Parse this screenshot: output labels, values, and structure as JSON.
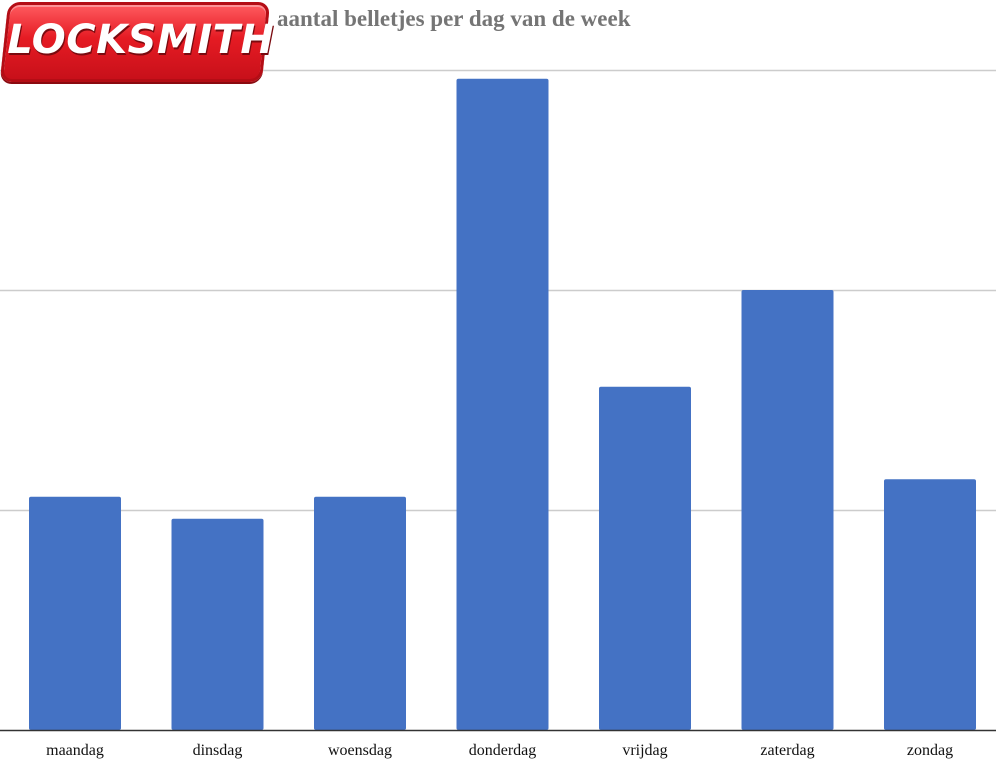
{
  "logo": {
    "text": "LOCKSMITH"
  },
  "chart_data": {
    "type": "bar",
    "title": "aantal belletjes per dag van de week",
    "categories": [
      "maandag",
      "dinsdag",
      "woensdag",
      "donderdag",
      "vrijdag",
      "zaterdag",
      "zondag"
    ],
    "values": [
      5.3,
      4.8,
      5.3,
      14.8,
      7.8,
      10.0,
      5.7
    ],
    "ylim": [
      0,
      15
    ],
    "gridlines": [
      5,
      10,
      15
    ],
    "xlabel": "",
    "ylabel": "",
    "bar_color": "#4472c4",
    "grid": true
  }
}
